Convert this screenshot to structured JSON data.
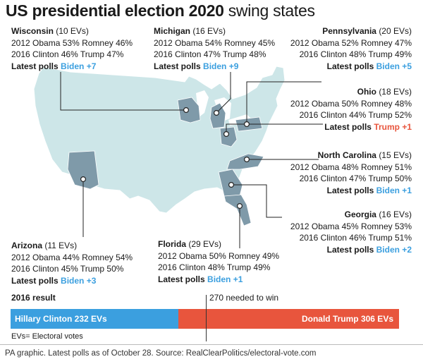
{
  "title": {
    "bold": "US presidential election 2020",
    "light": " swing states"
  },
  "colors": {
    "map_fill": "#cde6e8",
    "map_stroke": "#ffffff",
    "swing_fill": "#7f9aa9",
    "dem_blue": "#3b9fdf",
    "rep_red": "#e8553d",
    "connector": "#222222"
  },
  "states": {
    "wisconsin": {
      "name": "Wisconsin",
      "evs": "(10 EVs)",
      "line2012": "2012 Obama 53% Romney 46%",
      "line2016": "2016 Clinton 46% Trump 47%",
      "poll_label": "Latest polls",
      "poll_value": "Biden +7",
      "poll_party": "dem"
    },
    "michigan": {
      "name": "Michigan",
      "evs": "(16 EVs)",
      "line2012": "2012 Obama 54% Romney 45%",
      "line2016": "2016 Clinton 47% Trump 48%",
      "poll_label": "Latest polls",
      "poll_value": "Biden +9",
      "poll_party": "dem"
    },
    "pennsylvania": {
      "name": "Pennsylvania",
      "evs": "(20 EVs)",
      "line2012": "2012 Obama 52% Romney 47%",
      "line2016": "2016 Clinton 48% Trump 49%",
      "poll_label": "Latest polls",
      "poll_value": "Biden +5",
      "poll_party": "dem"
    },
    "ohio": {
      "name": "Ohio",
      "evs": "(18 EVs)",
      "line2012": "2012 Obama 50% Romney 48%",
      "line2016": "2016 Clinton 44% Trump 52%",
      "poll_label": "Latest polls",
      "poll_value": "Trump +1",
      "poll_party": "rep"
    },
    "north_carolina": {
      "name": "North Carolina",
      "evs": "(15 EVs)",
      "line2012": "2012 Obama 48% Romney 51%",
      "line2016": "2016 Clinton 47% Trump 50%",
      "poll_label": "Latest polls",
      "poll_value": "Biden +1",
      "poll_party": "dem"
    },
    "georgia": {
      "name": "Georgia",
      "evs": "(16 EVs)",
      "line2012": "2012 Obama 45% Romney 53%",
      "line2016": "2016 Clinton 46% Trump 51%",
      "poll_label": "Latest polls",
      "poll_value": "Biden +2",
      "poll_party": "dem"
    },
    "arizona": {
      "name": "Arizona",
      "evs": "(11 EVs)",
      "line2012": "2012 Obama 44% Romney 54%",
      "line2016": "2016 Clinton 45% Trump 50%",
      "poll_label": "Latest polls",
      "poll_value": "Biden +3",
      "poll_party": "dem"
    },
    "florida": {
      "name": "Florida",
      "evs": "(29 EVs)",
      "line2012": "2012 Obama 50% Romney 49%",
      "line2016": "2016 Clinton 48% Trump 49%",
      "poll_label": "Latest polls",
      "poll_value": "Biden +1",
      "poll_party": "dem"
    }
  },
  "result": {
    "heading": "2016 result",
    "threshold_label": "270 needed to win",
    "threshold_ev": 270,
    "total_ev": 538,
    "clinton": {
      "label": "Hillary Clinton 232 EVs",
      "evs": 232
    },
    "trump": {
      "label": "Donald Trump 306 EVs",
      "evs": 306
    },
    "note": "EVs= Electoral votes"
  },
  "footer": "PA graphic. Latest polls as of October 28. Source: RealClearPolitics/electoral-vote.com"
}
